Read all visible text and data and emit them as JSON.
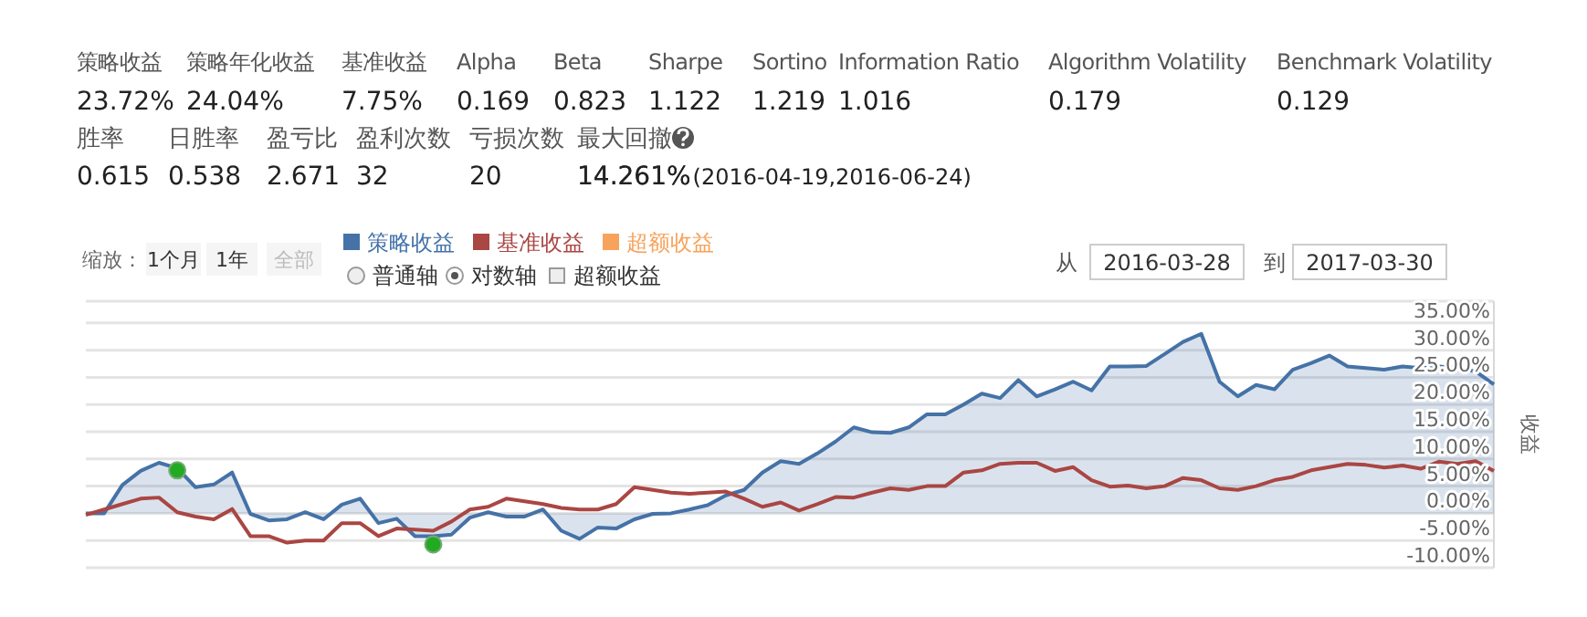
{
  "chart_data": {
    "type": "line",
    "ylabel": "收益",
    "legend": "top left",
    "grid": "y",
    "tick_labels": "y",
    "ylim": [
      -10,
      39
    ],
    "yticks": [
      {
        "value": -10,
        "label": "-10.00%"
      },
      {
        "value": -5,
        "label": "-5.00%"
      },
      {
        "value": 0,
        "label": "0.00%"
      },
      {
        "value": 5,
        "label": "5.00%"
      },
      {
        "value": 10,
        "label": "10.00%"
      },
      {
        "value": 15,
        "label": "15.00%"
      },
      {
        "value": 20,
        "label": "20.00%"
      },
      {
        "value": 25,
        "label": "25.00%"
      },
      {
        "value": 30,
        "label": "30.00%"
      },
      {
        "value": 35,
        "label": "35.00%"
      }
    ],
    "categories": [
      null,
      null,
      null,
      null,
      null,
      null,
      null,
      null,
      null,
      null,
      null,
      null,
      null,
      null,
      null,
      null,
      null,
      null,
      null,
      null,
      null,
      null,
      null,
      null,
      null,
      null,
      null,
      null,
      null,
      null,
      null,
      null,
      null,
      null,
      null,
      null,
      null,
      null,
      null,
      null,
      null,
      null,
      null,
      null,
      null,
      null,
      null,
      null,
      null,
      null,
      null,
      null,
      null,
      null,
      null,
      null,
      null,
      null,
      null,
      null,
      null,
      null,
      null,
      null,
      null,
      null,
      null,
      null,
      null,
      null,
      null,
      null,
      null,
      null,
      null,
      null,
      null,
      null
    ],
    "series": [
      {
        "name": "策略收益",
        "type": "area",
        "color": "#4572a7",
        "values": [
          0,
          0,
          5.2,
          7.8,
          9.3,
          8.3,
          4.8,
          5.3,
          7.5,
          -0.1,
          -1.3,
          -1.1,
          0.2,
          -1.1,
          1.6,
          2.7,
          -1.8,
          -1.0,
          -4.2,
          -4.2,
          -3.9,
          -0.8,
          0.2,
          -0.6,
          -0.6,
          0.7,
          -3.2,
          -4.7,
          -2.6,
          -2.8,
          -1.1,
          -0.1,
          0,
          0.7,
          1.5,
          3.3,
          4.3,
          7.5,
          9.6,
          9.1,
          11.0,
          13.2,
          15.8,
          14.9,
          14.8,
          15.8,
          18.2,
          18.2,
          20.0,
          22.0,
          21.2,
          24.5,
          21.5,
          22.8,
          24.2,
          22.6,
          27.0,
          27.0,
          27.1,
          29.3,
          31.5,
          33.0,
          24.2,
          21.5,
          23.6,
          22.8,
          26.4,
          27.6,
          29.0,
          27.0,
          26.7,
          26.4,
          27.0,
          26.7,
          27.0,
          26.7,
          26.1,
          23.7
        ]
      },
      {
        "name": "基准收益",
        "color": "#aa4643",
        "values": [
          -0.3,
          0.7,
          1.7,
          2.7,
          2.9,
          0.2,
          -0.6,
          -1.1,
          0.8,
          -4.2,
          -4.2,
          -5.4,
          -5.0,
          -5.0,
          -1.8,
          -1.8,
          -4.2,
          -2.8,
          -3.0,
          -3.2,
          -1.5,
          0.7,
          1.2,
          2.7,
          2.2,
          1.7,
          1.0,
          0.7,
          0.7,
          1.7,
          4.8,
          4.3,
          3.8,
          3.6,
          3.8,
          4.0,
          2.7,
          1.2,
          2.0,
          0.5,
          1.7,
          3.0,
          2.9,
          3.8,
          4.6,
          4.3,
          5.0,
          5.0,
          7.5,
          7.9,
          9.1,
          9.3,
          9.3,
          7.8,
          8.5,
          6.1,
          4.9,
          5.1,
          4.6,
          5.0,
          6.5,
          6.1,
          4.6,
          4.3,
          5.0,
          6.1,
          6.7,
          7.9,
          8.5,
          9.1,
          8.9,
          8.4,
          8.8,
          8.2,
          9.5,
          9.1,
          9.6,
          7.8
        ]
      },
      {
        "name": "超额收益",
        "color": "#f7a35c",
        "values": [
          null,
          null,
          null,
          null,
          null,
          null,
          null,
          null,
          null,
          null,
          null,
          null,
          null,
          null,
          null,
          null,
          null,
          null,
          null,
          null,
          null,
          null,
          null,
          null,
          null,
          null,
          null,
          null,
          null,
          null,
          null,
          null,
          null,
          null,
          null,
          null,
          null,
          null,
          null,
          null,
          null,
          null,
          null,
          null,
          null,
          null,
          null,
          null,
          null,
          null,
          null,
          null,
          null,
          null,
          null,
          null,
          null,
          null,
          null,
          null,
          null,
          null,
          null,
          null,
          null,
          null,
          null,
          null,
          null,
          null,
          null,
          null,
          null,
          null,
          null,
          null,
          null,
          null
        ]
      },
      {
        "type": "scatter",
        "color": "#22aa22",
        "values": [
          null,
          null,
          null,
          null,
          null,
          7.9,
          null,
          null,
          null,
          null,
          null,
          null,
          null,
          null,
          null,
          null,
          null,
          null,
          null,
          -5.7,
          null,
          null,
          null,
          null,
          null,
          null,
          null,
          null,
          null,
          null,
          null,
          null,
          null,
          null,
          null,
          null,
          null,
          null,
          null,
          null,
          null,
          null,
          null,
          null,
          null,
          null,
          null,
          null,
          null,
          null,
          null,
          null,
          null,
          null,
          null,
          null,
          null,
          null,
          null,
          null,
          null,
          null,
          null,
          null,
          null,
          null,
          null,
          null,
          null,
          null,
          null,
          null,
          null,
          null,
          null,
          null,
          null,
          null
        ]
      }
    ],
    "annotations": [
      "策略收益",
      "策略年化收益",
      "基准收益",
      "Alpha",
      "Beta",
      "Sharpe",
      "Sortino",
      "Information Ratio",
      "Algorithm Volatility",
      "Benchmark Volatility",
      "23.72%",
      "24.04%",
      "7.75%",
      "0.169",
      "0.823",
      "1.122",
      "1.219",
      "1.016",
      "0.179",
      "0.129",
      "胜率",
      "日胜率",
      "盈亏比",
      "盈利次数",
      "亏损次数",
      "最大回撤",
      "0.615",
      "0.538",
      "2.671",
      "32",
      "20",
      "14.261%",
      "(2016-04-19,2016-06-24)",
      "缩放：",
      "1个月",
      "1年",
      "全部",
      "普通轴",
      "对数轴",
      "超额收益",
      "从",
      "2016-03-28",
      "到",
      "2017-03-30"
    ]
  }
}
